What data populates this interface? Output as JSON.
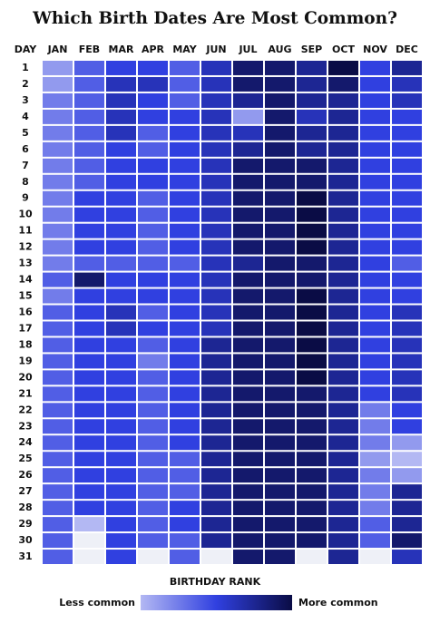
{
  "chart_data": {
    "type": "heatmap",
    "title": "Which Birth Dates Are Most Common?",
    "row_header": "DAY",
    "months": [
      "JAN",
      "FEB",
      "MAR",
      "APR",
      "MAY",
      "JUN",
      "JUL",
      "AUG",
      "SEP",
      "OCT",
      "NOV",
      "DEC"
    ],
    "days": [
      1,
      2,
      3,
      4,
      5,
      6,
      7,
      8,
      9,
      10,
      11,
      12,
      13,
      14,
      15,
      16,
      17,
      18,
      19,
      20,
      21,
      22,
      23,
      24,
      25,
      26,
      27,
      28,
      29,
      30,
      31
    ],
    "values": [
      [
        2,
        4,
        5,
        5,
        4,
        6,
        8,
        8,
        7,
        9,
        5,
        7
      ],
      [
        2,
        4,
        6,
        6,
        4,
        6,
        8,
        8,
        7,
        8,
        5,
        6
      ],
      [
        3,
        4,
        6,
        5,
        4,
        6,
        7,
        8,
        7,
        7,
        5,
        6
      ],
      [
        3,
        4,
        6,
        5,
        5,
        6,
        2,
        8,
        6,
        7,
        5,
        5
      ],
      [
        3,
        4,
        6,
        4,
        5,
        6,
        6,
        8,
        7,
        7,
        5,
        5
      ],
      [
        3,
        4,
        5,
        4,
        5,
        6,
        7,
        8,
        7,
        7,
        5,
        5
      ],
      [
        3,
        4,
        5,
        5,
        5,
        6,
        8,
        8,
        8,
        7,
        5,
        5
      ],
      [
        3,
        4,
        5,
        5,
        5,
        6,
        8,
        8,
        8,
        7,
        5,
        5
      ],
      [
        3,
        5,
        5,
        4,
        5,
        6,
        8,
        8,
        9,
        7,
        5,
        5
      ],
      [
        3,
        5,
        5,
        4,
        5,
        6,
        8,
        8,
        9,
        7,
        5,
        5
      ],
      [
        3,
        5,
        5,
        4,
        5,
        6,
        8,
        8,
        9,
        7,
        5,
        5
      ],
      [
        3,
        5,
        5,
        4,
        5,
        6,
        8,
        8,
        9,
        7,
        5,
        5
      ],
      [
        3,
        4,
        4,
        4,
        4,
        6,
        7,
        8,
        8,
        7,
        5,
        4
      ],
      [
        4,
        8,
        5,
        5,
        5,
        6,
        8,
        8,
        8,
        7,
        5,
        5
      ],
      [
        3,
        5,
        5,
        5,
        5,
        6,
        8,
        8,
        9,
        7,
        5,
        5
      ],
      [
        4,
        5,
        6,
        4,
        5,
        6,
        8,
        8,
        9,
        7,
        5,
        6
      ],
      [
        4,
        5,
        6,
        5,
        5,
        6,
        8,
        8,
        9,
        7,
        5,
        6
      ],
      [
        4,
        5,
        5,
        4,
        5,
        7,
        8,
        8,
        9,
        7,
        5,
        6
      ],
      [
        4,
        5,
        5,
        3,
        5,
        7,
        8,
        8,
        9,
        7,
        5,
        6
      ],
      [
        4,
        5,
        5,
        4,
        5,
        7,
        8,
        8,
        9,
        7,
        5,
        6
      ],
      [
        4,
        5,
        5,
        4,
        5,
        7,
        8,
        8,
        8,
        7,
        5,
        6
      ],
      [
        4,
        5,
        5,
        4,
        5,
        7,
        8,
        8,
        8,
        7,
        3,
        5
      ],
      [
        4,
        5,
        5,
        4,
        5,
        7,
        8,
        8,
        8,
        7,
        3,
        5
      ],
      [
        4,
        5,
        5,
        4,
        5,
        7,
        8,
        8,
        8,
        7,
        3,
        2
      ],
      [
        4,
        5,
        5,
        4,
        4,
        7,
        8,
        8,
        8,
        7,
        2,
        1
      ],
      [
        4,
        5,
        5,
        4,
        4,
        7,
        8,
        8,
        8,
        7,
        3,
        2
      ],
      [
        4,
        5,
        5,
        4,
        4,
        7,
        8,
        8,
        8,
        7,
        3,
        7
      ],
      [
        4,
        5,
        5,
        4,
        5,
        7,
        8,
        8,
        8,
        7,
        3,
        7
      ],
      [
        4,
        1,
        5,
        4,
        5,
        7,
        8,
        8,
        8,
        7,
        4,
        7
      ],
      [
        4,
        null,
        5,
        4,
        4,
        7,
        8,
        8,
        8,
        7,
        4,
        8
      ],
      [
        4,
        null,
        5,
        null,
        4,
        null,
        8,
        8,
        null,
        7,
        null,
        6
      ]
    ],
    "zlim": [
      1,
      9
    ],
    "colors": [
      "#b3b8f3",
      "#3040e0",
      "#0a0c45"
    ],
    "legend_title": "BIRTHDAY RANK",
    "legend_low": "Less common",
    "legend_high": "More common"
  }
}
